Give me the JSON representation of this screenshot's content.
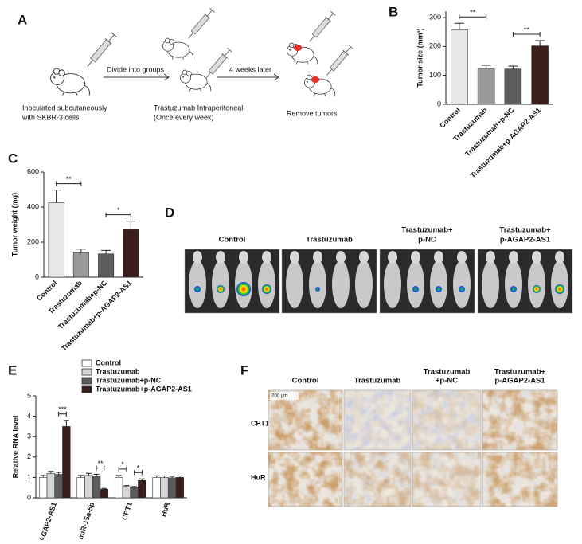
{
  "schematic": {
    "panel": "A",
    "steps": [
      [
        "Inoculated subcutaneously",
        "with SKBR-3 cells"
      ],
      [
        "Trastuzumab  Intraperitoneal",
        "(Once every week)"
      ],
      [
        "Remove tumors"
      ]
    ],
    "transitions": [
      "Divide into groups",
      "4 weeks later"
    ]
  },
  "chart_data": [
    {
      "panel": "B",
      "type": "bar",
      "ylabel": "Tumor size (mm³)",
      "categories": [
        "Control",
        "Trastuzumab",
        "Trastuzumab+p-NC",
        "Trastuzumab+p-AGAP2-AS1"
      ],
      "values": [
        258,
        122,
        122,
        202
      ],
      "errors": [
        22,
        13,
        10,
        18
      ],
      "colors": [
        "#e6e6e6",
        "#9a9a9a",
        "#5c5c5c",
        "#3a1e19"
      ],
      "ylim": [
        0,
        322
      ],
      "yticks": [
        0,
        100,
        200,
        300
      ],
      "brackets": [
        {
          "from": 0,
          "to": 1,
          "label": "**"
        },
        {
          "from": 2,
          "to": 3,
          "label": "**"
        }
      ]
    },
    {
      "panel": "C",
      "type": "bar",
      "ylabel": "Tumor weight (mg)",
      "categories": [
        "Control",
        "Trastuzumab",
        "Trastuzumab+p-NC",
        "Trastuzumab+p-AGAP2-AS1"
      ],
      "values": [
        425,
        140,
        133,
        272
      ],
      "errors": [
        72,
        20,
        20,
        48
      ],
      "colors": [
        "#e6e6e6",
        "#9a9a9a",
        "#5c5c5c",
        "#3a1e19"
      ],
      "ylim": [
        0,
        600
      ],
      "yticks": [
        0,
        200,
        400,
        600
      ],
      "brackets": [
        {
          "from": 0,
          "to": 1,
          "label": "**"
        },
        {
          "from": 2,
          "to": 3,
          "label": "*"
        }
      ]
    },
    {
      "panel": "E",
      "type": "grouped-bar",
      "ylabel": "Relative RNA level",
      "categories": [
        "AGAP2-AS1",
        "miR-15a-5p",
        "CPT1",
        "HuR"
      ],
      "series": [
        {
          "name": "Control",
          "color": "#ffffff",
          "values": [
            1.0,
            1.0,
            1.0,
            1.0
          ],
          "errors": [
            0.1,
            0.1,
            0.1,
            0.08
          ]
        },
        {
          "name": "Trastuzumab",
          "color": "#d6d6d6",
          "values": [
            1.2,
            1.1,
            0.55,
            1.0
          ],
          "errors": [
            0.1,
            0.1,
            0.05,
            0.08
          ]
        },
        {
          "name": "Trastuzumab+p-NC",
          "color": "#5c5c5c",
          "values": [
            1.15,
            1.05,
            0.5,
            0.98
          ],
          "errors": [
            0.1,
            0.1,
            0.05,
            0.08
          ]
        },
        {
          "name": "Trastuzumab+p-AGAP2-AS1",
          "color": "#3a1e19",
          "values": [
            3.5,
            0.42,
            0.85,
            1.0
          ],
          "errors": [
            0.3,
            0.04,
            0.08,
            0.08
          ]
        }
      ],
      "ylim": [
        0,
        5
      ],
      "yticks": [
        0,
        1,
        2,
        3,
        4,
        5
      ],
      "brackets": [
        {
          "category": 0,
          "from": 2,
          "to": 3,
          "label": "***"
        },
        {
          "category": 1,
          "from": 2,
          "to": 3,
          "label": "**"
        },
        {
          "category": 2,
          "from": 0,
          "to": 1,
          "label": "*"
        },
        {
          "category": 2,
          "from": 2,
          "to": 3,
          "label": "*"
        }
      ]
    }
  ],
  "imaging": {
    "panel": "D",
    "groups": [
      [
        "Control"
      ],
      [
        "Trastuzumab"
      ],
      [
        "Trastuzumab+",
        "p-NC"
      ],
      [
        "Trastuzumab+",
        "p-AGAP2-AS1"
      ]
    ]
  },
  "ihc": {
    "panel": "F",
    "columns": [
      [
        "Control"
      ],
      [
        "Trastuzumab"
      ],
      [
        "Trastuzumab",
        "+p-NC"
      ],
      [
        "Trastuzumab+",
        "p-AGAP2-AS1"
      ]
    ],
    "rows": [
      "CPT1",
      "HuR"
    ],
    "scale_bar": "200 μm"
  }
}
